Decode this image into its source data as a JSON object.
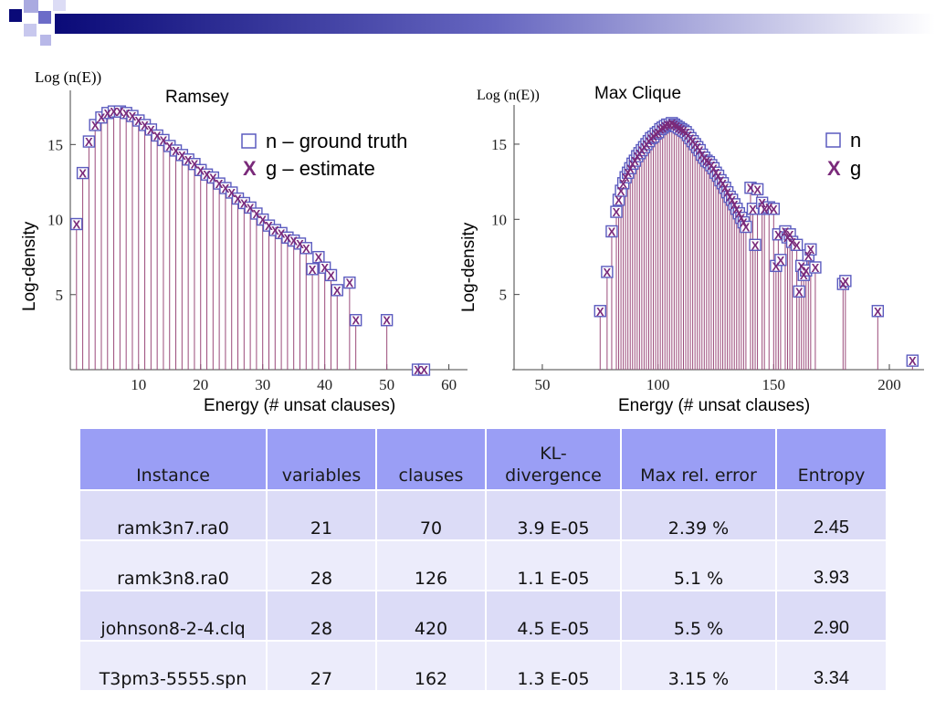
{
  "chart_data": [
    {
      "type": "scatter",
      "title": "Ramsey",
      "xlabel": "Energy (# unsat clauses)",
      "ylabel": "Log-density",
      "axis_corner_label": "Log (n(E))",
      "xlim": [
        -1,
        63
      ],
      "ylim": [
        0,
        18
      ],
      "x_ticks": [
        10,
        20,
        30,
        40,
        50,
        60
      ],
      "y_ticks": [
        5,
        10,
        15
      ],
      "grid": false,
      "legend_position": "top-right",
      "series": [
        {
          "name": "n – ground truth",
          "marker": "square",
          "color": "#5b5bbf",
          "x": [
            0,
            1,
            2,
            3,
            4,
            5,
            6,
            7,
            8,
            9,
            10,
            11,
            12,
            13,
            14,
            15,
            16,
            17,
            18,
            19,
            20,
            21,
            22,
            23,
            24,
            25,
            26,
            27,
            28,
            29,
            30,
            31,
            32,
            33,
            34,
            35,
            36,
            37,
            38,
            39,
            40,
            41,
            42,
            44,
            45,
            50,
            55,
            56
          ],
          "y": [
            9.7,
            13.1,
            15.2,
            16.3,
            16.8,
            17.1,
            17.2,
            17.2,
            17.1,
            16.9,
            16.6,
            16.3,
            16.0,
            15.6,
            15.3,
            14.9,
            14.6,
            14.3,
            14.0,
            13.7,
            13.3,
            13.0,
            12.8,
            12.4,
            12.1,
            11.8,
            11.4,
            11.1,
            10.8,
            10.4,
            10.0,
            9.6,
            9.3,
            9.1,
            8.8,
            8.6,
            8.4,
            8.1,
            6.7,
            7.5,
            6.8,
            6.3,
            5.3,
            5.8,
            3.3,
            3.3,
            0.0,
            0.0
          ]
        },
        {
          "name": "g – estimate",
          "marker": "x",
          "color": "#7a2a7a",
          "x": [
            0,
            1,
            2,
            3,
            4,
            5,
            6,
            7,
            8,
            9,
            10,
            11,
            12,
            13,
            14,
            15,
            16,
            17,
            18,
            19,
            20,
            21,
            22,
            23,
            24,
            25,
            26,
            27,
            28,
            29,
            30,
            31,
            32,
            33,
            34,
            35,
            36,
            37,
            38,
            39,
            40,
            41,
            42,
            44,
            45,
            50,
            55,
            56
          ],
          "y": [
            9.7,
            13.1,
            15.2,
            16.3,
            16.8,
            17.1,
            17.2,
            17.2,
            17.1,
            16.9,
            16.6,
            16.3,
            16.0,
            15.6,
            15.3,
            14.9,
            14.6,
            14.3,
            14.0,
            13.7,
            13.3,
            13.0,
            12.8,
            12.4,
            12.1,
            11.8,
            11.4,
            11.1,
            10.8,
            10.4,
            10.0,
            9.6,
            9.3,
            9.1,
            8.8,
            8.6,
            8.4,
            8.1,
            6.7,
            7.5,
            6.8,
            6.3,
            5.3,
            5.8,
            3.3,
            3.3,
            0.0,
            0.0
          ]
        }
      ]
    },
    {
      "type": "scatter",
      "title": "Max Clique",
      "xlabel": "Energy (# unsat clauses)",
      "ylabel": "Log-density",
      "axis_corner_label": "Log (n(E))",
      "xlim": [
        37,
        215
      ],
      "ylim": [
        0,
        17
      ],
      "x_ticks": [
        50,
        100,
        150,
        200
      ],
      "y_ticks": [
        5,
        10,
        15
      ],
      "grid": false,
      "legend_position": "top-right",
      "series": [
        {
          "name": "n",
          "marker": "square",
          "color": "#5b5bbf",
          "x": [
            75,
            78,
            80,
            82,
            83,
            84,
            85,
            86,
            87,
            88,
            89,
            90,
            91,
            92,
            93,
            94,
            95,
            96,
            97,
            98,
            99,
            100,
            101,
            102,
            103,
            104,
            105,
            106,
            107,
            108,
            109,
            110,
            111,
            112,
            113,
            114,
            115,
            116,
            117,
            118,
            119,
            120,
            121,
            122,
            123,
            124,
            125,
            126,
            127,
            128,
            129,
            130,
            131,
            132,
            133,
            134,
            135,
            136,
            137,
            138,
            140,
            141,
            142,
            143,
            145,
            146,
            148,
            150,
            151,
            152,
            153,
            155,
            156,
            157,
            158,
            160,
            161,
            162,
            163,
            164,
            165,
            166,
            168,
            180,
            181,
            195,
            210
          ],
          "y": [
            3.9,
            6.5,
            9.2,
            10.5,
            11.3,
            11.9,
            12.4,
            12.8,
            13.1,
            13.4,
            13.7,
            13.9,
            14.2,
            14.4,
            14.6,
            14.8,
            15.0,
            15.2,
            15.4,
            15.5,
            15.7,
            15.8,
            16.0,
            16.1,
            16.2,
            16.3,
            16.3,
            16.4,
            16.3,
            16.2,
            16.1,
            16.0,
            15.9,
            15.8,
            15.6,
            15.4,
            15.2,
            15.0,
            14.8,
            14.6,
            14.3,
            14.1,
            13.9,
            13.8,
            13.6,
            13.4,
            13.1,
            12.9,
            12.6,
            12.4,
            12.1,
            11.8,
            11.5,
            11.3,
            11.0,
            10.7,
            10.4,
            10.1,
            9.8,
            9.5,
            12.1,
            10.7,
            8.3,
            12.0,
            11.1,
            10.7,
            10.8,
            10.7,
            6.9,
            9.0,
            7.3,
            9.2,
            8.8,
            9.0,
            8.5,
            8.3,
            5.2,
            6.9,
            6.3,
            6.6,
            7.6,
            8.0,
            6.8,
            5.7,
            5.9,
            3.9,
            0.6
          ]
        },
        {
          "name": "g",
          "marker": "x",
          "color": "#7a2a7a",
          "x": [
            75,
            78,
            80,
            82,
            83,
            84,
            85,
            86,
            87,
            88,
            89,
            90,
            91,
            92,
            93,
            94,
            95,
            96,
            97,
            98,
            99,
            100,
            101,
            102,
            103,
            104,
            105,
            106,
            107,
            108,
            109,
            110,
            111,
            112,
            113,
            114,
            115,
            116,
            117,
            118,
            119,
            120,
            121,
            122,
            123,
            124,
            125,
            126,
            127,
            128,
            129,
            130,
            131,
            132,
            133,
            134,
            135,
            136,
            137,
            138,
            140,
            141,
            142,
            143,
            145,
            146,
            148,
            150,
            151,
            152,
            153,
            155,
            156,
            157,
            158,
            160,
            161,
            162,
            163,
            164,
            165,
            166,
            168,
            180,
            181,
            195,
            210
          ],
          "y": [
            3.9,
            6.5,
            9.2,
            10.5,
            11.3,
            11.9,
            12.4,
            12.8,
            13.1,
            13.4,
            13.7,
            13.9,
            14.2,
            14.4,
            14.6,
            14.8,
            15.0,
            15.2,
            15.4,
            15.5,
            15.7,
            15.8,
            16.0,
            16.1,
            16.2,
            16.3,
            16.3,
            16.4,
            16.3,
            16.2,
            16.1,
            16.0,
            15.9,
            15.8,
            15.6,
            15.4,
            15.2,
            15.0,
            14.8,
            14.6,
            14.3,
            14.1,
            13.9,
            13.8,
            13.6,
            13.4,
            13.1,
            12.9,
            12.6,
            12.4,
            12.1,
            11.8,
            11.5,
            11.3,
            11.0,
            10.7,
            10.4,
            10.1,
            9.8,
            9.5,
            12.1,
            10.7,
            8.3,
            12.0,
            11.1,
            10.7,
            10.8,
            10.7,
            6.9,
            9.0,
            7.3,
            9.2,
            8.8,
            9.0,
            8.5,
            8.3,
            5.2,
            6.9,
            6.3,
            6.6,
            7.6,
            8.0,
            6.8,
            5.7,
            5.9,
            3.9,
            0.6
          ]
        }
      ]
    }
  ],
  "colors": {
    "ground_truth": "#5b5bbf",
    "estimate": "#7a2a7a",
    "stem": "#9a4a7a",
    "table_header": "#9a9ef5",
    "table_row": "#dcdcf7",
    "table_row_alt": "#ececfb"
  },
  "table": {
    "headers": [
      "Instance",
      "variables",
      "clauses",
      "KL-\ndivergence",
      "Max rel. error",
      "Entropy"
    ],
    "rows": [
      [
        "ramk3n7.ra0",
        "21",
        "70",
        "3.9 E-05",
        "2.39 %",
        "2.45"
      ],
      [
        "ramk3n8.ra0",
        "28",
        "126",
        "1.1 E-05",
        "5.1 %",
        "3.93"
      ],
      [
        "johnson8-2-4.clq",
        "28",
        "420",
        "4.5 E-05",
        "5.5 %",
        "2.90"
      ],
      [
        "T3pm3-5555.spn",
        "27",
        "162",
        "1.3 E-05",
        "3.15 %",
        "3.34"
      ]
    ]
  }
}
